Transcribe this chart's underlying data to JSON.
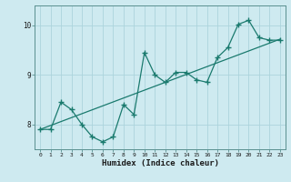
{
  "xlabel": "Humidex (Indice chaleur)",
  "bg_color": "#ceeaf0",
  "grid_color": "#acd4dc",
  "line_color": "#1a7a6e",
  "x_data": [
    0,
    1,
    2,
    3,
    4,
    5,
    6,
    7,
    8,
    9,
    10,
    11,
    12,
    13,
    14,
    15,
    16,
    17,
    18,
    19,
    20,
    21,
    22,
    23
  ],
  "y_data": [
    7.9,
    7.9,
    8.45,
    8.3,
    8.0,
    7.75,
    7.65,
    7.75,
    8.4,
    8.2,
    9.45,
    9.0,
    8.85,
    9.05,
    9.05,
    8.9,
    8.85,
    9.35,
    9.55,
    10.02,
    10.1,
    9.75,
    9.7,
    9.7
  ],
  "ylim": [
    7.5,
    10.4
  ],
  "yticks": [
    8,
    9,
    10
  ],
  "xlim": [
    -0.5,
    23.5
  ],
  "trend_x": [
    0,
    23
  ],
  "trend_y": [
    7.9,
    9.72
  ]
}
